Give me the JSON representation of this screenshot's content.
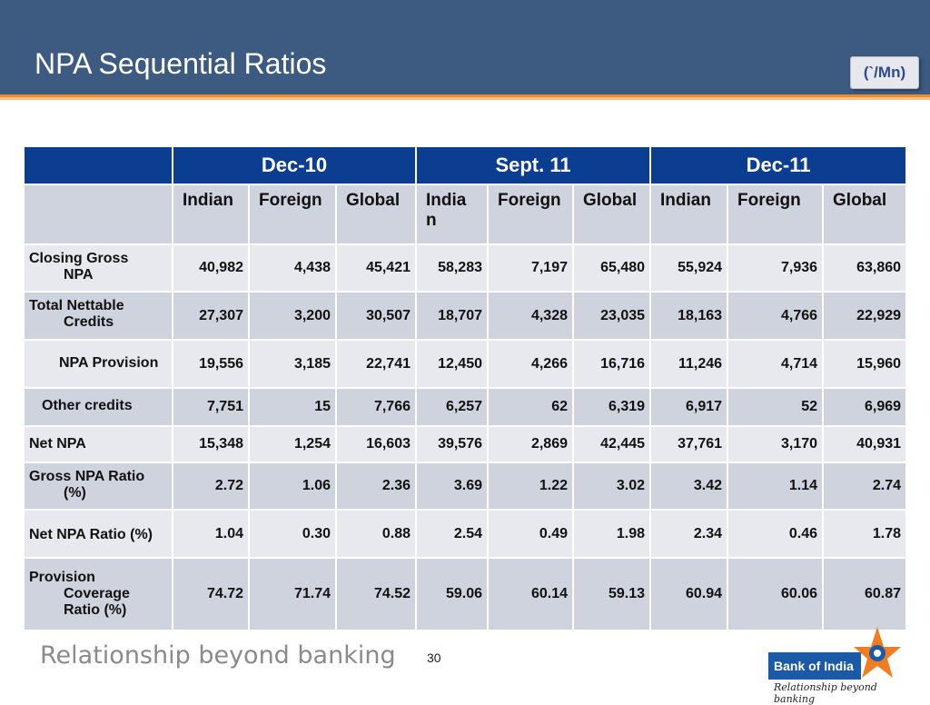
{
  "slide": {
    "title": "NPA Sequential Ratios",
    "unit": "(`/Mn)",
    "footer_tagline": "Relationship beyond banking",
    "page_number": "30",
    "logo": {
      "name": "Bank of India",
      "tagline": "Relationship beyond banking"
    }
  },
  "table": {
    "periods": [
      "Dec-10",
      "Sept. 11",
      "Dec-11"
    ],
    "subheaders": [
      "Indian",
      "Foreign",
      "Global",
      "India\nn",
      "Foreign",
      "Global",
      "Indian",
      "Foreign",
      "Global"
    ],
    "rows": [
      {
        "label_line1": "Closing Gross",
        "label_line2": "NPA",
        "values": [
          "40,982",
          "4,438",
          "45,421",
          "58,283",
          "7,197",
          "65,480",
          "55,924",
          "7,936",
          "63,860"
        ]
      },
      {
        "label_line1": "Total Nettable",
        "label_line2": "Credits",
        "values": [
          "27,307",
          "3,200",
          "30,507",
          "18,707",
          "4,328",
          "23,035",
          "18,163",
          "4,766",
          "22,929"
        ]
      },
      {
        "label": "NPA Provision",
        "values": [
          "19,556",
          "3,185",
          "22,741",
          "12,450",
          "4,266",
          "16,716",
          "11,246",
          "4,714",
          "15,960"
        ]
      },
      {
        "label": "Other credits",
        "values": [
          "7,751",
          "15",
          "7,766",
          "6,257",
          "62",
          "6,319",
          "6,917",
          "52",
          "6,969"
        ]
      },
      {
        "label": "Net NPA",
        "values": [
          "15,348",
          "1,254",
          "16,603",
          "39,576",
          "2,869",
          "42,445",
          "37,761",
          "3,170",
          "40,931"
        ]
      },
      {
        "label_line1": "Gross NPA Ratio",
        "label_line2": "(%)",
        "values": [
          "2.72",
          "1.06",
          "2.36",
          "3.69",
          "1.22",
          "3.02",
          "3.42",
          "1.14",
          "2.74"
        ]
      },
      {
        "label": "Net NPA Ratio (%)",
        "values": [
          "1.04",
          "0.30",
          "0.88",
          "2.54",
          "0.49",
          "1.98",
          "2.34",
          "0.46",
          "1.78"
        ]
      },
      {
        "label_line1": "Provision",
        "label_line2": "Coverage",
        "label_line3": "Ratio (%)",
        "values": [
          "74.72",
          "71.74",
          "74.52",
          "59.06",
          "60.14",
          "59.13",
          "60.94",
          "60.06",
          "60.87"
        ]
      }
    ]
  },
  "colors": {
    "header_bg": "#3d5a80",
    "accent_orange": "#f08c20",
    "table_header_bg": "#0b3d91",
    "row_light": "#e8e9ee",
    "row_dark": "#cfd3de",
    "logo_blue": "#1b5aa6"
  }
}
